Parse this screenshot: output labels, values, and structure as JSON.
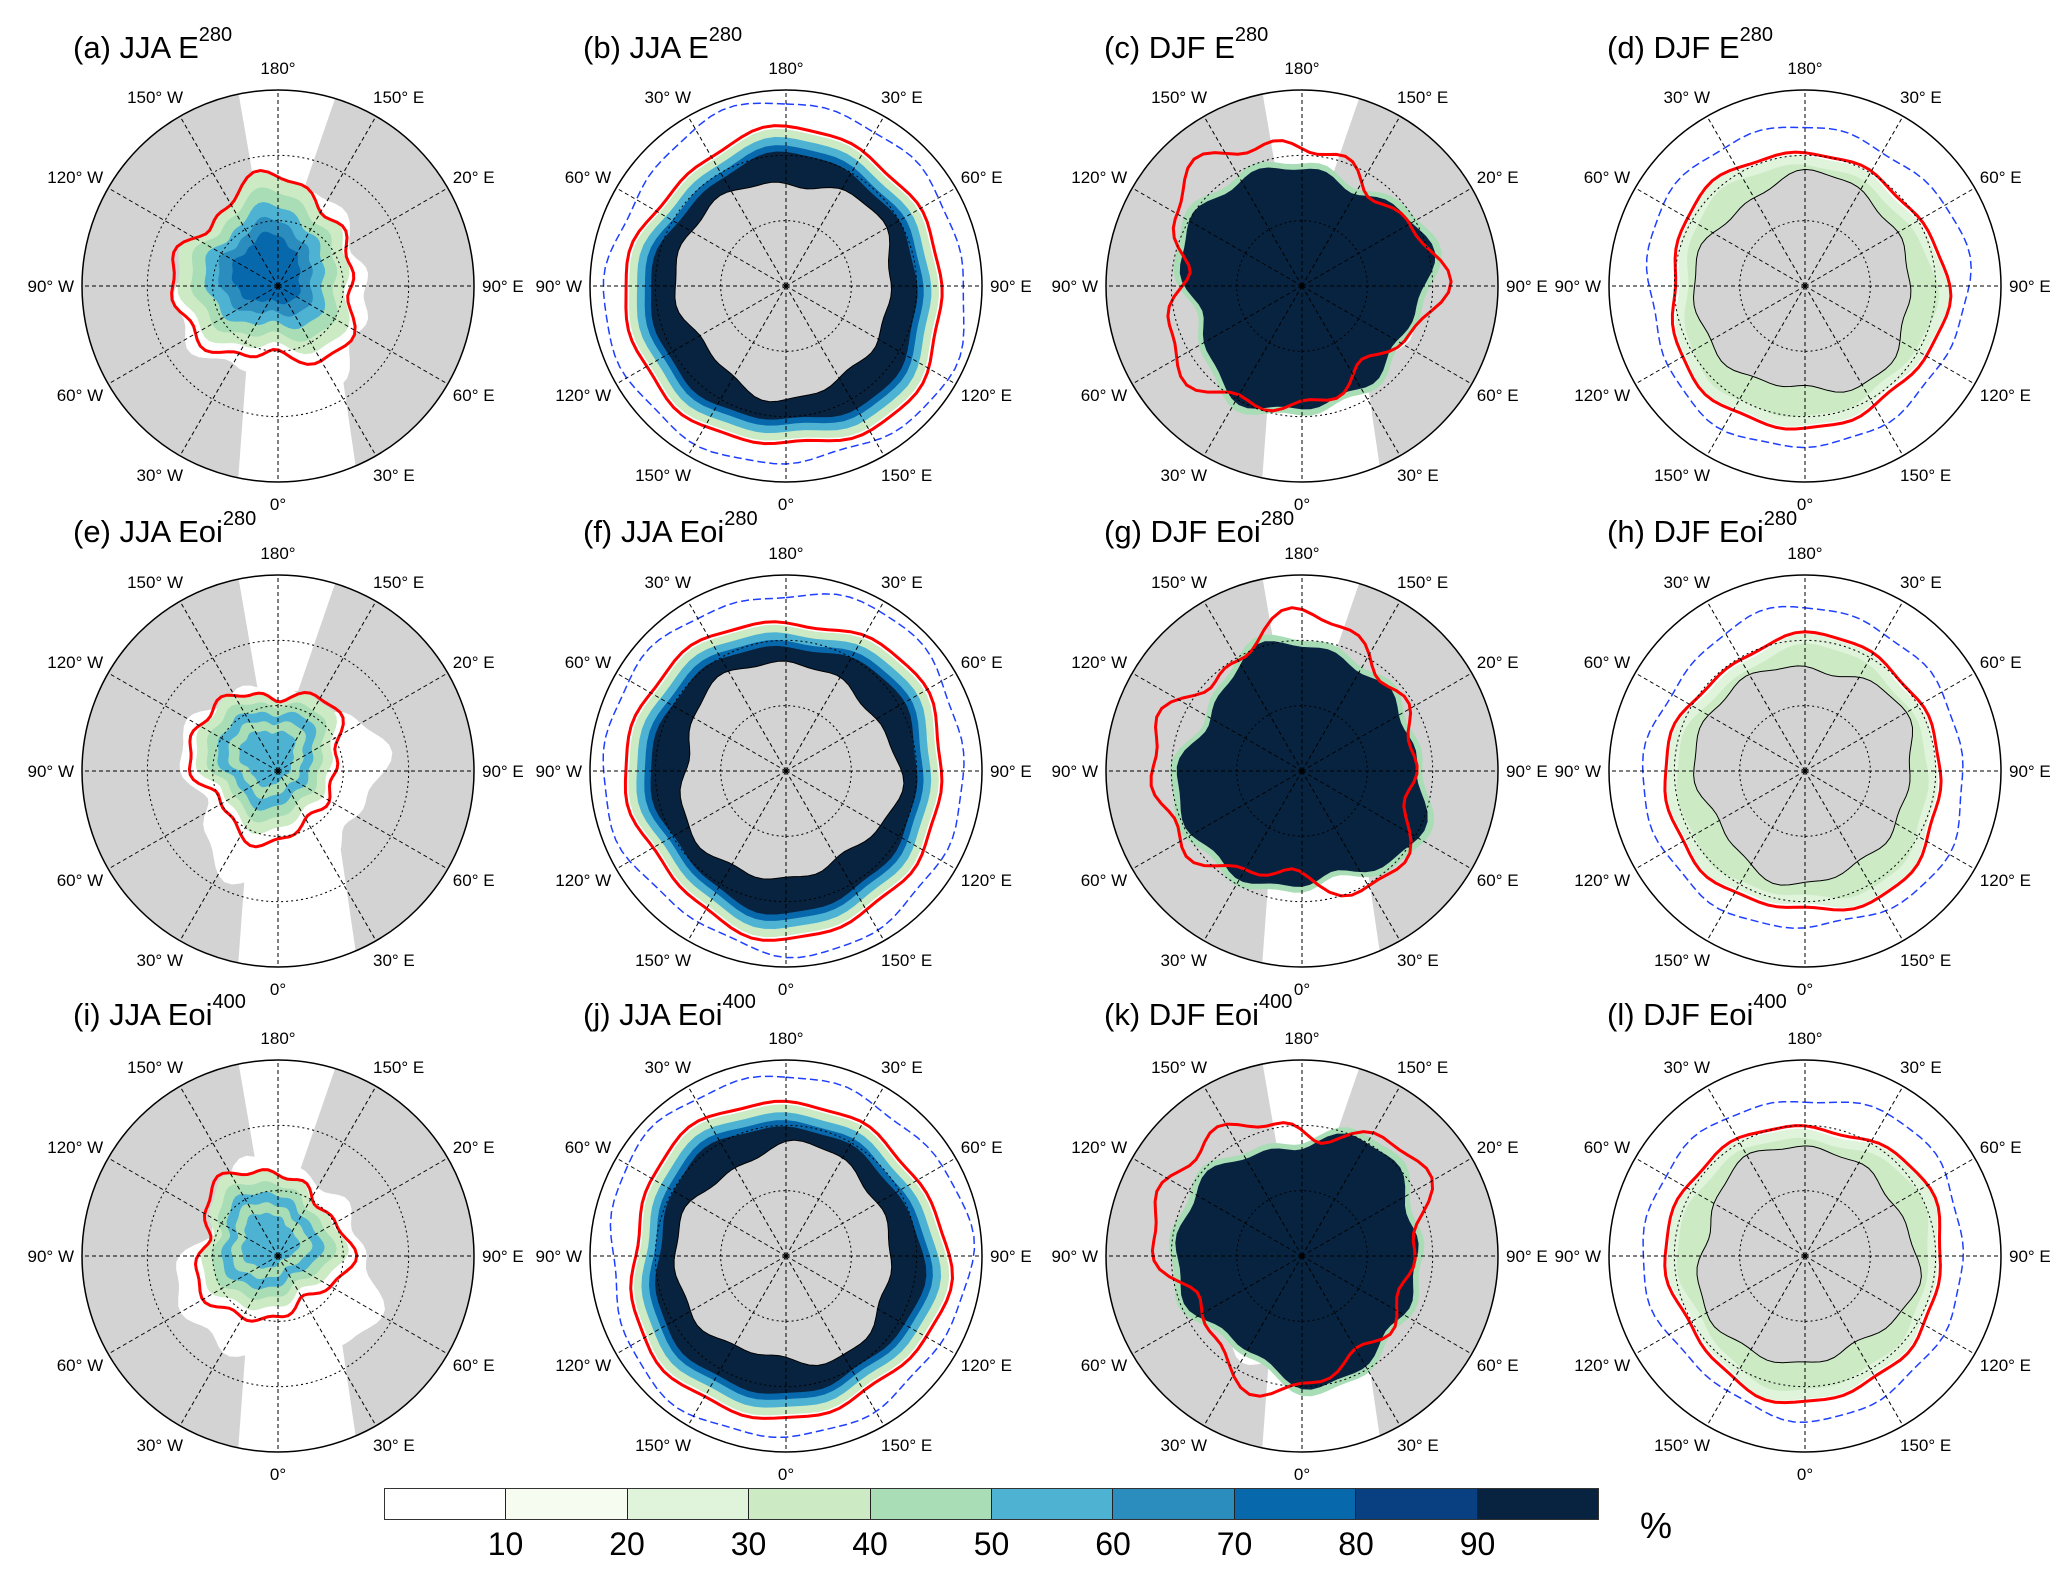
{
  "panels": [
    {
      "label": "(a) JJA E",
      "sup": "280",
      "hemisphere": "north",
      "season": "JJA"
    },
    {
      "label": "(b) JJA E",
      "sup": "280",
      "hemisphere": "south",
      "season": "JJA"
    },
    {
      "label": "(c) DJF E",
      "sup": "280",
      "hemisphere": "north",
      "season": "DJF"
    },
    {
      "label": "(d) DJF E",
      "sup": "280",
      "hemisphere": "south",
      "season": "DJF"
    },
    {
      "label": "(e) JJA Eoi",
      "sup": "280",
      "hemisphere": "north",
      "season": "JJA"
    },
    {
      "label": "(f) JJA Eoi",
      "sup": "280",
      "hemisphere": "south",
      "season": "JJA"
    },
    {
      "label": "(g) DJF Eoi",
      "sup": "280",
      "hemisphere": "north",
      "season": "DJF"
    },
    {
      "label": "(h) DJF Eoi",
      "sup": "280",
      "hemisphere": "south",
      "season": "DJF"
    },
    {
      "label": "(i) JJA Eoi",
      "sup": "400",
      "hemisphere": "north",
      "season": "JJA"
    },
    {
      "label": "(j) JJA Eoi",
      "sup": "400",
      "hemisphere": "south",
      "season": "JJA"
    },
    {
      "label": "(k) DJF Eoi",
      "sup": "400",
      "hemisphere": "north",
      "season": "DJF"
    },
    {
      "label": "(l) DJF Eoi",
      "sup": "400",
      "hemisphere": "south",
      "season": "DJF"
    }
  ],
  "lon_labels": {
    "north": [
      "180°",
      "150° E",
      "20° E",
      "90° E",
      "60° E",
      "30° E",
      "0°",
      "30° W",
      "60° W",
      "90° W",
      "120° W",
      "150° W"
    ],
    "south": [
      "180°",
      "30° E",
      "60° E",
      "90° E",
      "120° E",
      "150° E",
      "0°",
      "150° W",
      "120° W",
      "90° W",
      "60° W",
      "30° W"
    ]
  },
  "colorbar": {
    "colors": [
      "#ffffff",
      "#f7fcf0",
      "#e0f3db",
      "#ccebc5",
      "#a8ddb5",
      "#4eb3d3",
      "#2b8cbe",
      "#0868ac",
      "#084081",
      "#08233f"
    ],
    "ticks": [
      "10",
      "20",
      "30",
      "40",
      "50",
      "60",
      "70",
      "80",
      "90"
    ],
    "unit": "%"
  },
  "colors": {
    "land": "#d3d3d3",
    "ice_edge": "#ff0000",
    "obs_edge": "#1f3fff"
  }
}
